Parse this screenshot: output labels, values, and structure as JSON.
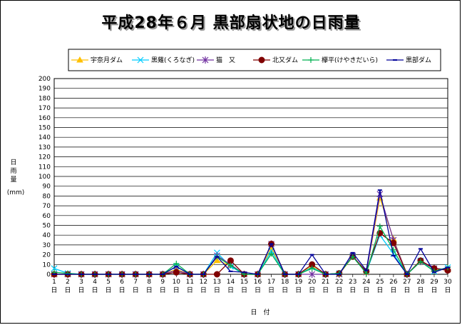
{
  "chart_data": {
    "type": "line",
    "title": "平成28年６月 黒部扇状地の日雨量",
    "ylabel_lines": [
      "日",
      "雨",
      "量"
    ],
    "yunit": "(mm)",
    "xlabel": "日　付",
    "ylim": [
      0,
      200
    ],
    "ytick_step": 10,
    "x": [
      "1",
      "2",
      "3",
      "4",
      "5",
      "6",
      "7",
      "8",
      "9",
      "10",
      "11",
      "12",
      "13",
      "14",
      "15",
      "16",
      "17",
      "18",
      "19",
      "20",
      "21",
      "22",
      "23",
      "24",
      "25",
      "26",
      "27",
      "28",
      "29",
      "30"
    ],
    "x_suffix": "日",
    "grid": true,
    "legend_position": "top",
    "series": [
      {
        "name": "宇奈月ダム",
        "color": "#FFC000",
        "marker": "triangle",
        "values": [
          0,
          0,
          0,
          0,
          0,
          0,
          0,
          0,
          0,
          5,
          0,
          0,
          14,
          9,
          0,
          0,
          27,
          0,
          0,
          8,
          0,
          0,
          18,
          2,
          78,
          36,
          0,
          14,
          5,
          5
        ]
      },
      {
        "name": "黒薙(くろなぎ)",
        "color": "#00CCFF",
        "marker": "x",
        "values": [
          6,
          1,
          0,
          0,
          0,
          0,
          0,
          0,
          0,
          8,
          0,
          0,
          22,
          8,
          0,
          0,
          24,
          0,
          0,
          7,
          0,
          1,
          18,
          2,
          40,
          21,
          0,
          14,
          3,
          7
        ]
      },
      {
        "name": "猫　又",
        "color": "#7030A0",
        "marker": "star",
        "values": [
          0,
          0,
          0,
          0,
          0,
          0,
          0,
          0,
          0,
          4,
          0,
          0,
          19,
          10,
          0,
          0,
          31,
          0,
          0,
          0,
          0,
          0,
          19,
          2,
          82,
          35,
          0,
          13,
          6,
          5
        ]
      },
      {
        "name": "北又ダム",
        "color": "#800000",
        "marker": "circle",
        "values": [
          0,
          0,
          0,
          0,
          0,
          0,
          0,
          0,
          0,
          2,
          0,
          0,
          0,
          14,
          0,
          0,
          31,
          0,
          0,
          10,
          0,
          1,
          18,
          3,
          42,
          32,
          0,
          14,
          6,
          4
        ]
      },
      {
        "name": "欅平(けやきだいら)",
        "color": "#00B050",
        "marker": "plus",
        "values": [
          2,
          1,
          0,
          0,
          0,
          0,
          0,
          0,
          0,
          11,
          0,
          0,
          18,
          9,
          0,
          0,
          21,
          0,
          0,
          6,
          0,
          1,
          18,
          1,
          49,
          25,
          0,
          13,
          3,
          7
        ]
      },
      {
        "name": "黒部ダム",
        "color": "#000099",
        "marker": "dash",
        "values": [
          0,
          0,
          0,
          0,
          0,
          0,
          0,
          0,
          0,
          8,
          0,
          0,
          18,
          3,
          2,
          0,
          31,
          0,
          0,
          20,
          0,
          0,
          22,
          4,
          86,
          19,
          0,
          26,
          2,
          7
        ]
      }
    ]
  }
}
